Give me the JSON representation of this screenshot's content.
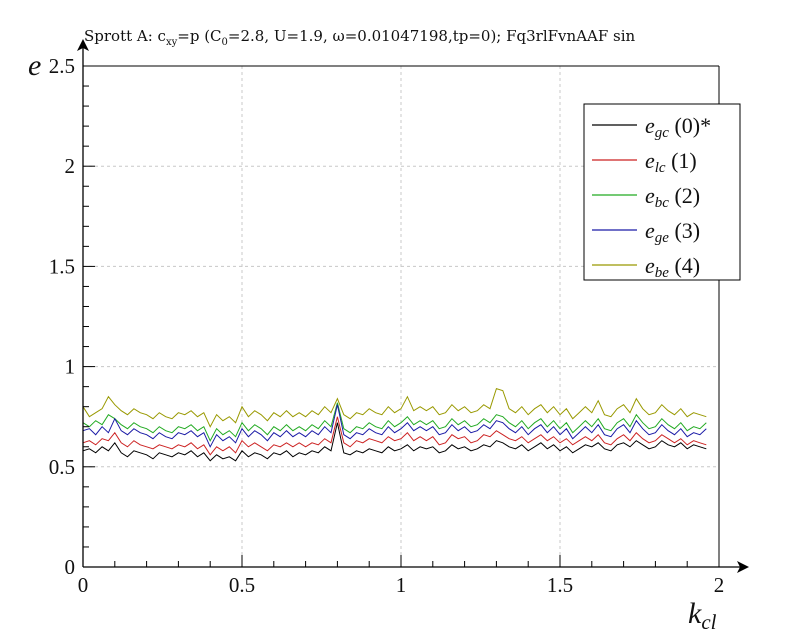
{
  "chart_data": {
    "type": "line",
    "title_parts": {
      "pre": "Sprott A: c",
      "sub1": "xy",
      "mid": "=p (C",
      "sub2": "0",
      "post": "=2.8, U=1.9, ω=0.01047198,tp=0); Fq3rlFvnAAF sin"
    },
    "xlabel": "k",
    "xlabel_sub": "cl",
    "ylabel": "e",
    "xlim": [
      0,
      2
    ],
    "ylim": [
      0,
      2.5
    ],
    "xticks": [
      "0",
      "0.5",
      "1",
      "1.5",
      "2"
    ],
    "yticks": [
      "0",
      "0.5",
      "1",
      "1.5",
      "2",
      "2.5"
    ],
    "grid": true,
    "legend_position": "top-right",
    "x": [
      0.0,
      0.02,
      0.04,
      0.06,
      0.08,
      0.1,
      0.12,
      0.14,
      0.16,
      0.18,
      0.2,
      0.22,
      0.24,
      0.26,
      0.28,
      0.3,
      0.32,
      0.34,
      0.36,
      0.38,
      0.4,
      0.42,
      0.44,
      0.46,
      0.48,
      0.5,
      0.52,
      0.54,
      0.56,
      0.58,
      0.6,
      0.62,
      0.64,
      0.66,
      0.68,
      0.7,
      0.72,
      0.74,
      0.76,
      0.78,
      0.8,
      0.82,
      0.84,
      0.86,
      0.88,
      0.9,
      0.92,
      0.94,
      0.96,
      0.98,
      1.0,
      1.02,
      1.04,
      1.06,
      1.08,
      1.1,
      1.12,
      1.14,
      1.16,
      1.18,
      1.2,
      1.22,
      1.24,
      1.26,
      1.28,
      1.3,
      1.32,
      1.34,
      1.36,
      1.38,
      1.4,
      1.42,
      1.44,
      1.46,
      1.48,
      1.5,
      1.52,
      1.54,
      1.56,
      1.58,
      1.6,
      1.62,
      1.64,
      1.66,
      1.68,
      1.7,
      1.72,
      1.74,
      1.76,
      1.78,
      1.8,
      1.82,
      1.84,
      1.86,
      1.88,
      1.9,
      1.92,
      1.94,
      1.96
    ],
    "series": [
      {
        "name": "e_gc (0)*",
        "name_sym": "gc",
        "name_rest": " (0)*",
        "color": "#000000",
        "values": [
          0.58,
          0.59,
          0.57,
          0.6,
          0.58,
          0.62,
          0.57,
          0.55,
          0.58,
          0.57,
          0.56,
          0.54,
          0.57,
          0.56,
          0.55,
          0.57,
          0.56,
          0.58,
          0.55,
          0.57,
          0.53,
          0.56,
          0.54,
          0.55,
          0.53,
          0.58,
          0.55,
          0.57,
          0.56,
          0.54,
          0.57,
          0.56,
          0.58,
          0.55,
          0.57,
          0.56,
          0.58,
          0.57,
          0.6,
          0.58,
          0.72,
          0.57,
          0.56,
          0.58,
          0.57,
          0.59,
          0.58,
          0.57,
          0.6,
          0.58,
          0.59,
          0.61,
          0.58,
          0.6,
          0.59,
          0.6,
          0.57,
          0.58,
          0.61,
          0.59,
          0.6,
          0.58,
          0.59,
          0.61,
          0.6,
          0.63,
          0.62,
          0.6,
          0.59,
          0.61,
          0.58,
          0.6,
          0.62,
          0.59,
          0.61,
          0.58,
          0.6,
          0.57,
          0.59,
          0.61,
          0.6,
          0.62,
          0.59,
          0.58,
          0.61,
          0.62,
          0.6,
          0.63,
          0.61,
          0.59,
          0.6,
          0.63,
          0.61,
          0.6,
          0.62,
          0.59,
          0.61,
          0.6,
          0.59
        ]
      },
      {
        "name": "e_lc (1)",
        "name_sym": "lc",
        "name_rest": " (1)",
        "color": "#cc2222",
        "values": [
          0.62,
          0.63,
          0.61,
          0.64,
          0.63,
          0.67,
          0.62,
          0.6,
          0.63,
          0.61,
          0.6,
          0.59,
          0.61,
          0.6,
          0.59,
          0.61,
          0.6,
          0.62,
          0.59,
          0.61,
          0.56,
          0.6,
          0.58,
          0.6,
          0.57,
          0.63,
          0.6,
          0.62,
          0.6,
          0.58,
          0.61,
          0.6,
          0.62,
          0.6,
          0.62,
          0.6,
          0.62,
          0.61,
          0.64,
          0.62,
          0.75,
          0.62,
          0.6,
          0.63,
          0.62,
          0.64,
          0.63,
          0.62,
          0.65,
          0.63,
          0.64,
          0.67,
          0.63,
          0.65,
          0.63,
          0.65,
          0.61,
          0.62,
          0.66,
          0.64,
          0.65,
          0.62,
          0.63,
          0.66,
          0.65,
          0.68,
          0.66,
          0.64,
          0.63,
          0.65,
          0.62,
          0.64,
          0.66,
          0.63,
          0.65,
          0.62,
          0.64,
          0.61,
          0.63,
          0.65,
          0.63,
          0.66,
          0.62,
          0.61,
          0.64,
          0.66,
          0.63,
          0.67,
          0.64,
          0.62,
          0.63,
          0.66,
          0.64,
          0.62,
          0.64,
          0.61,
          0.63,
          0.62,
          0.61
        ]
      },
      {
        "name": "e_bc (2)",
        "name_sym": "bc",
        "name_rest": " (2)",
        "color": "#22aa22",
        "values": [
          0.72,
          0.7,
          0.73,
          0.71,
          0.76,
          0.74,
          0.71,
          0.69,
          0.72,
          0.7,
          0.69,
          0.67,
          0.7,
          0.68,
          0.67,
          0.7,
          0.69,
          0.71,
          0.68,
          0.7,
          0.63,
          0.69,
          0.66,
          0.68,
          0.65,
          0.72,
          0.68,
          0.71,
          0.69,
          0.66,
          0.7,
          0.68,
          0.71,
          0.68,
          0.7,
          0.68,
          0.71,
          0.69,
          0.73,
          0.7,
          0.82,
          0.69,
          0.67,
          0.7,
          0.69,
          0.72,
          0.7,
          0.69,
          0.73,
          0.7,
          0.72,
          0.75,
          0.71,
          0.73,
          0.71,
          0.73,
          0.69,
          0.7,
          0.74,
          0.71,
          0.73,
          0.7,
          0.71,
          0.74,
          0.72,
          0.76,
          0.75,
          0.72,
          0.7,
          0.73,
          0.69,
          0.72,
          0.74,
          0.7,
          0.73,
          0.69,
          0.72,
          0.67,
          0.7,
          0.73,
          0.7,
          0.74,
          0.69,
          0.68,
          0.72,
          0.74,
          0.7,
          0.76,
          0.72,
          0.69,
          0.7,
          0.74,
          0.71,
          0.69,
          0.72,
          0.68,
          0.7,
          0.69,
          0.72
        ]
      },
      {
        "name": "e_ge (3)",
        "name_sym": "ge",
        "name_rest": " (3)",
        "color": "#1a1aa6",
        "values": [
          0.68,
          0.69,
          0.66,
          0.7,
          0.67,
          0.74,
          0.68,
          0.66,
          0.69,
          0.67,
          0.66,
          0.64,
          0.67,
          0.65,
          0.64,
          0.67,
          0.66,
          0.68,
          0.65,
          0.67,
          0.6,
          0.66,
          0.63,
          0.65,
          0.62,
          0.69,
          0.65,
          0.68,
          0.66,
          0.63,
          0.67,
          0.65,
          0.68,
          0.65,
          0.67,
          0.65,
          0.68,
          0.66,
          0.7,
          0.67,
          0.81,
          0.66,
          0.64,
          0.67,
          0.66,
          0.69,
          0.67,
          0.66,
          0.7,
          0.67,
          0.69,
          0.72,
          0.68,
          0.7,
          0.68,
          0.7,
          0.66,
          0.67,
          0.71,
          0.68,
          0.7,
          0.67,
          0.68,
          0.71,
          0.69,
          0.73,
          0.72,
          0.69,
          0.67,
          0.7,
          0.66,
          0.69,
          0.71,
          0.67,
          0.7,
          0.66,
          0.69,
          0.64,
          0.67,
          0.7,
          0.67,
          0.71,
          0.66,
          0.65,
          0.69,
          0.71,
          0.67,
          0.73,
          0.69,
          0.66,
          0.67,
          0.71,
          0.68,
          0.66,
          0.69,
          0.65,
          0.67,
          0.66,
          0.69
        ]
      },
      {
        "name": "e_be (4)",
        "name_sym": "be",
        "name_rest": " (4)",
        "color": "#999900",
        "values": [
          0.8,
          0.75,
          0.77,
          0.79,
          0.85,
          0.81,
          0.78,
          0.76,
          0.79,
          0.77,
          0.76,
          0.74,
          0.77,
          0.75,
          0.74,
          0.77,
          0.76,
          0.78,
          0.75,
          0.77,
          0.7,
          0.76,
          0.73,
          0.75,
          0.72,
          0.8,
          0.75,
          0.78,
          0.76,
          0.73,
          0.77,
          0.75,
          0.78,
          0.75,
          0.77,
          0.75,
          0.78,
          0.76,
          0.8,
          0.77,
          0.84,
          0.76,
          0.74,
          0.77,
          0.76,
          0.79,
          0.77,
          0.76,
          0.8,
          0.77,
          0.79,
          0.85,
          0.78,
          0.8,
          0.78,
          0.8,
          0.76,
          0.77,
          0.81,
          0.78,
          0.8,
          0.77,
          0.78,
          0.81,
          0.79,
          0.89,
          0.88,
          0.79,
          0.77,
          0.8,
          0.76,
          0.79,
          0.81,
          0.77,
          0.8,
          0.76,
          0.79,
          0.74,
          0.77,
          0.8,
          0.77,
          0.83,
          0.76,
          0.75,
          0.79,
          0.81,
          0.77,
          0.84,
          0.79,
          0.76,
          0.77,
          0.81,
          0.78,
          0.76,
          0.79,
          0.75,
          0.77,
          0.76,
          0.75
        ]
      }
    ]
  }
}
